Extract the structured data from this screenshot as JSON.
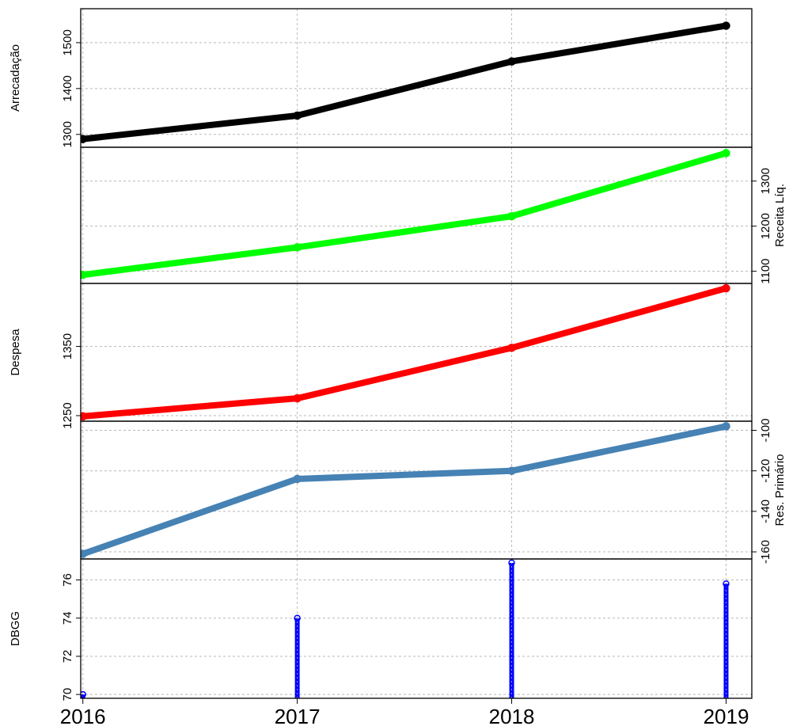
{
  "chart_data": [
    {
      "type": "line",
      "ylabel": "Arrecadação",
      "y_axis_side": "left",
      "color": "#000000",
      "x": [
        2016,
        2017,
        2018,
        2019
      ],
      "values": [
        1290,
        1341,
        1459,
        1537
      ],
      "ylim": [
        1272,
        1574
      ],
      "yticks": [
        1300,
        1400,
        1500
      ],
      "grid": true
    },
    {
      "type": "line",
      "ylabel": "Receita Líq.",
      "y_axis_side": "right",
      "color": "#00ff00",
      "x": [
        2016,
        2017,
        2018,
        2019
      ],
      "values": [
        1092,
        1153,
        1222,
        1362
      ],
      "ylim": [
        1073,
        1375
      ],
      "yticks": [
        1100,
        1200,
        1300
      ],
      "grid": true
    },
    {
      "type": "line",
      "ylabel": "Despesa",
      "y_axis_side": "left",
      "color": "#ff0000",
      "x": [
        2016,
        2017,
        2018,
        2019
      ],
      "values": [
        1249,
        1275,
        1348,
        1434
      ],
      "ylim": [
        1242,
        1441
      ],
      "yticks": [
        1250,
        1350
      ],
      "grid": true
    },
    {
      "type": "line",
      "ylabel": "Res. Primário",
      "y_axis_side": "right",
      "color": "#4682b4",
      "x": [
        2016,
        2017,
        2018,
        2019
      ],
      "values": [
        -161,
        -124,
        -120,
        -98
      ],
      "ylim": [
        -163.5,
        -95.5
      ],
      "yticks": [
        -160,
        -140,
        -120,
        -100
      ],
      "grid": true
    },
    {
      "type": "bar",
      "ylabel": "DBGG",
      "y_axis_side": "left",
      "color": "#0000ff",
      "x": [
        2016,
        2017,
        2018,
        2019
      ],
      "values": [
        70.0,
        74.0,
        76.9,
        75.8
      ],
      "ylim": [
        69.8,
        77.1
      ],
      "yticks": [
        70,
        72,
        74,
        76
      ],
      "grid": true
    }
  ],
  "shared_x": {
    "xlim": [
      2015.99,
      2019.12
    ],
    "ticks": [
      "2016",
      "2017",
      "2018",
      "2019"
    ]
  }
}
